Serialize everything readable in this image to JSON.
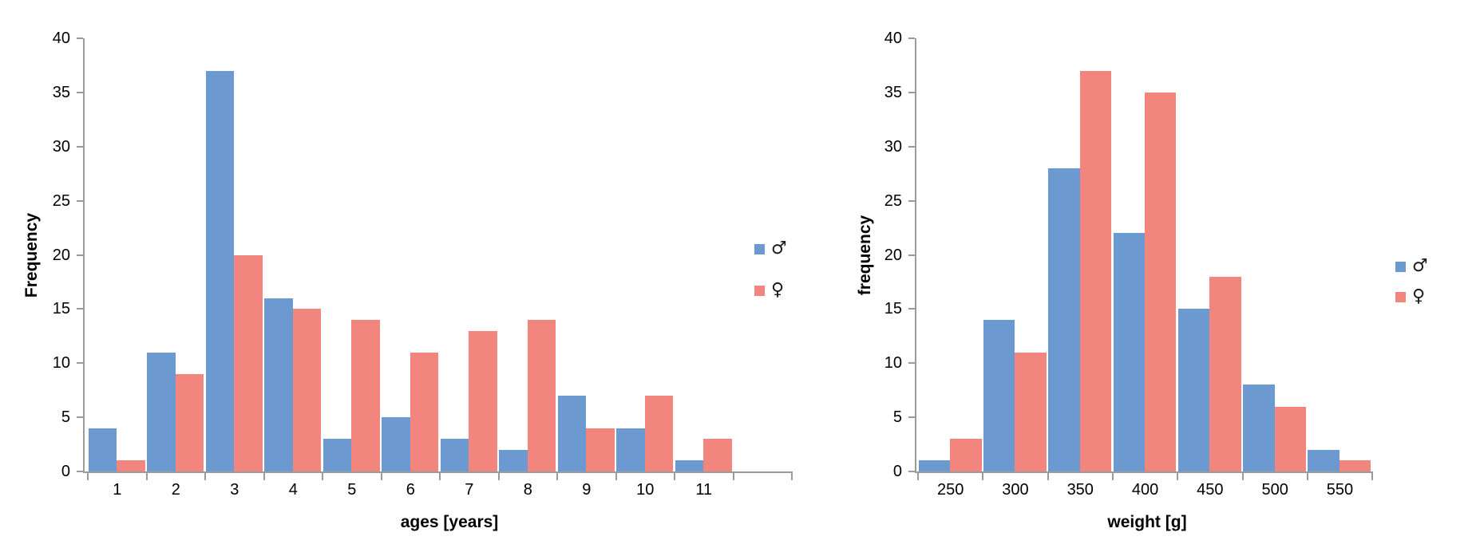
{
  "page": {
    "background": "#ffffff",
    "description": "Two side-by-side histograms comparing male and female animals by age and by weight"
  },
  "colors": {
    "male": "#6c99cf",
    "female": "#f2867e",
    "axis": "#9b9b9b",
    "text": "#000000"
  },
  "chart_data": [
    {
      "type": "bar",
      "title": "",
      "xlabel": "ages [years]",
      "ylabel": "Frequency",
      "categories": [
        "1",
        "2",
        "3",
        "4",
        "5",
        "6",
        "7",
        "8",
        "9",
        "10",
        "11"
      ],
      "series": [
        {
          "name": "♂",
          "color_key": "male",
          "values": [
            4,
            11,
            37,
            16,
            3,
            5,
            3,
            2,
            7,
            4,
            1
          ]
        },
        {
          "name": "♀",
          "color_key": "female",
          "values": [
            1,
            9,
            20,
            15,
            14,
            11,
            13,
            14,
            4,
            7,
            3
          ]
        }
      ],
      "ylim": [
        0,
        40
      ],
      "ytick_step": 5,
      "grid": false,
      "legend_position": "right",
      "trailing_empty_categories": 1
    },
    {
      "type": "bar",
      "title": "",
      "xlabel": "weight [g]",
      "ylabel": "frequency",
      "categories": [
        "250",
        "300",
        "350",
        "400",
        "450",
        "500",
        "550"
      ],
      "series": [
        {
          "name": "♂",
          "color_key": "male",
          "values": [
            1,
            14,
            28,
            22,
            15,
            8,
            2
          ]
        },
        {
          "name": "♀",
          "color_key": "female",
          "values": [
            3,
            11,
            37,
            35,
            18,
            6,
            1
          ]
        }
      ],
      "ylim": [
        0,
        40
      ],
      "ytick_step": 5,
      "grid": false,
      "legend_position": "right",
      "trailing_empty_categories": 0
    }
  ]
}
